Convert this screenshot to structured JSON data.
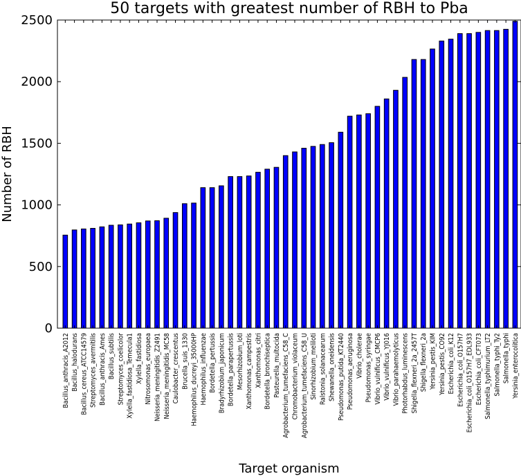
{
  "chart_data": {
    "type": "bar",
    "title": "50 targets with greatest number of RBH to Pba",
    "xlabel": "Target organism",
    "ylabel": "Number of RBH",
    "ylim": [
      0,
      2500
    ],
    "yticks": [
      0,
      500,
      1000,
      1500,
      2000,
      2500
    ],
    "grid": false,
    "legend": "none",
    "bar_color": "#0000ff",
    "categories": [
      "Bacillus_anthracis_A2012",
      "Bacillus_halodurans",
      "Bacillus_cereus_ATCC14579",
      "Streptomyces_avermitilis",
      "Bacillus_anthracis_Ames",
      "Bacillus_subtilis",
      "Streptomyces_coelicolor",
      "Xylella_fastidiosa_Temecula1",
      "Xylella_fastidiosa",
      "Nitrosomonas_europaea",
      "Neisseria_meningitidis_Z2491",
      "Neisseria_meningitidis_MC58",
      "Caulobacter_crescentus",
      "Brucella_suis_1330",
      "Haemophilus_ducreyi_35000HP",
      "Haemophilus_influenzae",
      "Bordetella_pertussis",
      "Bradyrhizobium_japonicum",
      "Bordetella_parapertussis",
      "Mesorhizobium_loti",
      "Xanthomonas_campestris",
      "Xanthomonas_citri",
      "Bordetella_bronchiseptica",
      "Pasteurella_multocida",
      "Agrobacterium_tumefaciens_C58_C",
      "Chromobacterium_violaceum",
      "Agrobacterium_tumefaciens_C58_U",
      "Sinorhizobium_meliloti",
      "Ralstonia_solanacearum",
      "Shewanella_oneidensis",
      "Pseudomonas_putida_KT2440",
      "Pseudomonas_aeruginosa",
      "Vibrio_cholerae",
      "Pseudomonas_syringae",
      "Vibrio_vulnificus_CMCP6",
      "Vibrio_vulnificus_YJ016",
      "Vibrio_parahaemolyticus",
      "Photorhabdus_luminescens",
      "Shigella_flexneri_2a_2457T",
      "Shigella_flexneri_2a",
      "Yersinia_pestis_KIM",
      "Yersinia_pestis_CO92",
      "Escherichia_coli_K12",
      "Escherichia_coli_O157H7",
      "Escherichia_coli_O157H7_EDL933",
      "Escherichia_coli_CFT073",
      "Salmonella_typhimurium_LT2",
      "Salmonella_typhi_Ty2",
      "Salmonella_typhi",
      "Yersinia_enterocolitica"
    ],
    "values": [
      755,
      797,
      805,
      810,
      822,
      835,
      838,
      845,
      855,
      870,
      872,
      892,
      938,
      1010,
      1015,
      1140,
      1140,
      1155,
      1230,
      1230,
      1235,
      1265,
      1290,
      1305,
      1400,
      1430,
      1460,
      1475,
      1490,
      1505,
      1590,
      1720,
      1730,
      1740,
      1800,
      1860,
      1930,
      2035,
      2180,
      2180,
      2265,
      2330,
      2345,
      2390,
      2390,
      2400,
      2415,
      2415,
      2425,
      2490
    ]
  }
}
